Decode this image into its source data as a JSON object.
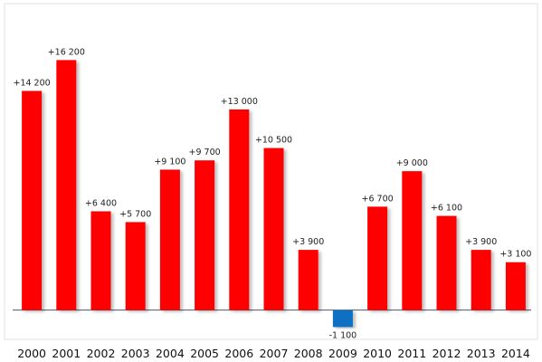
{
  "chart_data": {
    "type": "bar",
    "categories": [
      "2000",
      "2001",
      "2002",
      "2003",
      "2004",
      "2005",
      "2006",
      "2007",
      "2008",
      "2009",
      "2010",
      "2011",
      "2012",
      "2013",
      "2014"
    ],
    "values": [
      14200,
      16200,
      6400,
      5700,
      9100,
      9700,
      13000,
      10500,
      3900,
      -1100,
      6700,
      9000,
      6100,
      3900,
      3100
    ],
    "value_labels": [
      "+14 200",
      "+16 200",
      "+6 400",
      "+5 700",
      "+9 100",
      "+9 700",
      "+13 000",
      "+10 500",
      "+3 900",
      "-1 100",
      "+6 700",
      "+9 000",
      "+6 100",
      "+3 900",
      "+3 100"
    ],
    "color": "#ff0000",
    "negative_color": "#0a6fc2",
    "ylim": [
      -1900,
      19800
    ]
  }
}
